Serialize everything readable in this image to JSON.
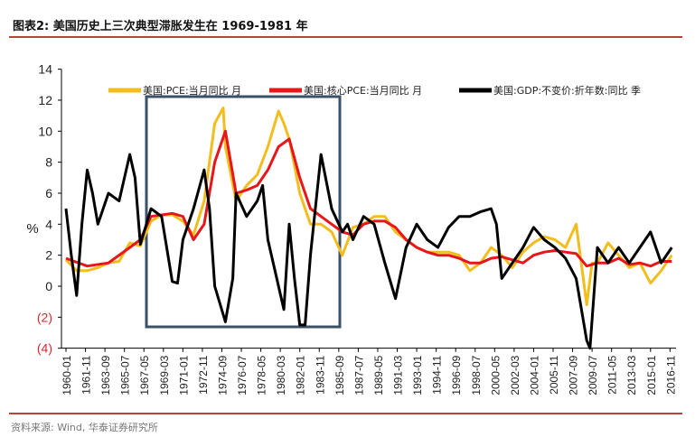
{
  "header": {
    "title": "图表2:   美国历史上三次典型滞胀发生在 1969-1981 年"
  },
  "footer": {
    "source": "资料来源: Wind, 华泰证券研究所"
  },
  "colors": {
    "pce": "#f2bd1d",
    "core_pce": "#e8161a",
    "gdp": "#000000",
    "highlight_box": "#3b5069",
    "rule": "#b8433a",
    "negative_tick": "#d9262c"
  },
  "chart_data": {
    "type": "line",
    "title": "",
    "xlabel": "",
    "ylabel": "%",
    "ylim": [
      -4,
      14
    ],
    "yticks": [
      14,
      12,
      10,
      8,
      6,
      4,
      2,
      0,
      -2,
      -4
    ],
    "ytick_labels": [
      "14",
      "12",
      "10",
      "8",
      "6",
      "4",
      "2",
      "0",
      "(2)",
      "(4)"
    ],
    "xtick_labels": [
      "1960-01",
      "1961-11",
      "1963-09",
      "1965-07",
      "1967-05",
      "1969-03",
      "1971-01",
      "1972-11",
      "1974-09",
      "1976-07",
      "1978-05",
      "1980-03",
      "1982-01",
      "1983-11",
      "1985-09",
      "1987-07",
      "1989-05",
      "1991-03",
      "1993-01",
      "1994-11",
      "1996-09",
      "1998-07",
      "2000-05",
      "2002-03",
      "2004-01",
      "2005-11",
      "2007-09",
      "2009-07",
      "2011-05",
      "2013-03",
      "2015-01",
      "2016-11"
    ],
    "grid": false,
    "legend": "top",
    "highlight_period": [
      "1969",
      "1985"
    ],
    "series": [
      {
        "name": "美国:PCE:当月同比 月",
        "color": "#f2bd1d",
        "x": [
          1960,
          1961,
          1962,
          1963,
          1964,
          1965,
          1966,
          1967,
          1968,
          1969,
          1970,
          1971,
          1972,
          1973,
          1974,
          1974.8,
          1975,
          1976,
          1977,
          1978,
          1979,
          1980,
          1980.5,
          1981,
          1982,
          1983,
          1984,
          1985,
          1986,
          1987,
          1988,
          1989,
          1990,
          1991,
          1992,
          1993,
          1994,
          1995,
          1996,
          1997,
          1998,
          1999,
          2000,
          2001,
          2002,
          2003,
          2004,
          2005,
          2006,
          2007,
          2008,
          2009,
          2009.5,
          2010,
          2011,
          2012,
          2013,
          2014,
          2015,
          2016,
          2017
        ],
        "y": [
          1.7,
          1,
          1,
          1.2,
          1.5,
          1.6,
          2.8,
          2.6,
          4.2,
          4.6,
          4.6,
          4.2,
          3.3,
          5.5,
          10.5,
          11.5,
          9,
          5.5,
          6.5,
          7.2,
          9,
          11.3,
          10.5,
          9.5,
          6,
          4,
          4,
          3.5,
          2,
          3.8,
          4,
          4.5,
          4.5,
          3.5,
          3,
          2.5,
          2.2,
          2.2,
          2.2,
          2,
          1,
          1.5,
          2.5,
          2,
          1.2,
          2.2,
          2.8,
          3.2,
          3,
          2.5,
          4,
          -1.2,
          1.5,
          1.5,
          2.8,
          2,
          1.2,
          1.5,
          0.2,
          1,
          2
        ]
      },
      {
        "name": "美国:核心PCE:当月同比 月",
        "color": "#e8161a",
        "x": [
          1960,
          1962,
          1964,
          1966,
          1967,
          1968,
          1970,
          1971,
          1972,
          1973,
          1974,
          1975,
          1975.5,
          1976,
          1977,
          1978,
          1979,
          1980,
          1981,
          1982,
          1983,
          1984,
          1985,
          1986,
          1987,
          1988,
          1989,
          1990,
          1991,
          1992,
          1993,
          1994,
          1995,
          1996,
          1997,
          1998,
          1999,
          2000,
          2001,
          2002,
          2003,
          2004,
          2005,
          2006,
          2007,
          2008,
          2009,
          2010,
          2011,
          2012,
          2013,
          2014,
          2015,
          2016,
          2017
        ],
        "y": [
          1.8,
          1.3,
          1.5,
          2.5,
          3,
          4.5,
          4.7,
          4.5,
          3,
          4,
          8,
          10,
          8,
          6,
          6.2,
          6.5,
          7.5,
          9,
          9.5,
          7,
          5,
          4.5,
          4,
          3.5,
          3.3,
          4,
          4.2,
          4.2,
          3.8,
          3,
          2.5,
          2.2,
          2,
          2,
          1.8,
          1.5,
          1.5,
          1.8,
          1.9,
          1.7,
          1.5,
          2,
          2.2,
          2.3,
          2.2,
          2.1,
          1.3,
          1.5,
          1.5,
          1.8,
          1.4,
          1.5,
          1.3,
          1.6,
          1.6
        ]
      },
      {
        "name": "美国:GDP:不变价:折年数:同比 季",
        "color": "#000000",
        "x": [
          1960,
          1960.5,
          1961,
          1961.5,
          1962,
          1962.5,
          1963,
          1964,
          1965,
          1966,
          1966.5,
          1967,
          1968,
          1969,
          1970,
          1970.5,
          1971,
          1972,
          1973,
          1973.5,
          1974,
          1975,
          1975.7,
          1976,
          1977,
          1978,
          1978.5,
          1979,
          1980,
          1980.5,
          1981,
          1981.5,
          1982,
          1982.5,
          1983,
          1984,
          1985,
          1986,
          1986.5,
          1987,
          1988,
          1989,
          1990,
          1991,
          1992,
          1993,
          1994,
          1995,
          1996,
          1997,
          1998,
          1999,
          2000,
          2000.5,
          2001,
          2002,
          2003,
          2004,
          2005,
          2006,
          2007,
          2008,
          2009,
          2009.3,
          2010,
          2011,
          2012,
          2013,
          2014,
          2015,
          2016,
          2017
        ],
        "y": [
          5,
          2,
          -0.6,
          4,
          7.5,
          6,
          4,
          6,
          5.5,
          8.5,
          7,
          2.7,
          5,
          4.5,
          0.3,
          0.2,
          3,
          5,
          7.5,
          5,
          0,
          -2.3,
          0.5,
          6,
          4.5,
          5.5,
          6.5,
          3,
          0,
          -1.5,
          4,
          0.5,
          -2.5,
          -2.5,
          2,
          8.5,
          5,
          3.5,
          4,
          3,
          4.5,
          4,
          1.5,
          -0.8,
          2.5,
          4,
          3,
          2.5,
          3.8,
          4.5,
          4.5,
          4.8,
          5,
          4,
          0.5,
          1.5,
          2.5,
          3.8,
          3,
          2.5,
          1.8,
          0.5,
          -3.5,
          -4,
          2.5,
          1.5,
          2.5,
          1.5,
          2.5,
          3.5,
          1.5,
          2.5
        ]
      }
    ]
  }
}
